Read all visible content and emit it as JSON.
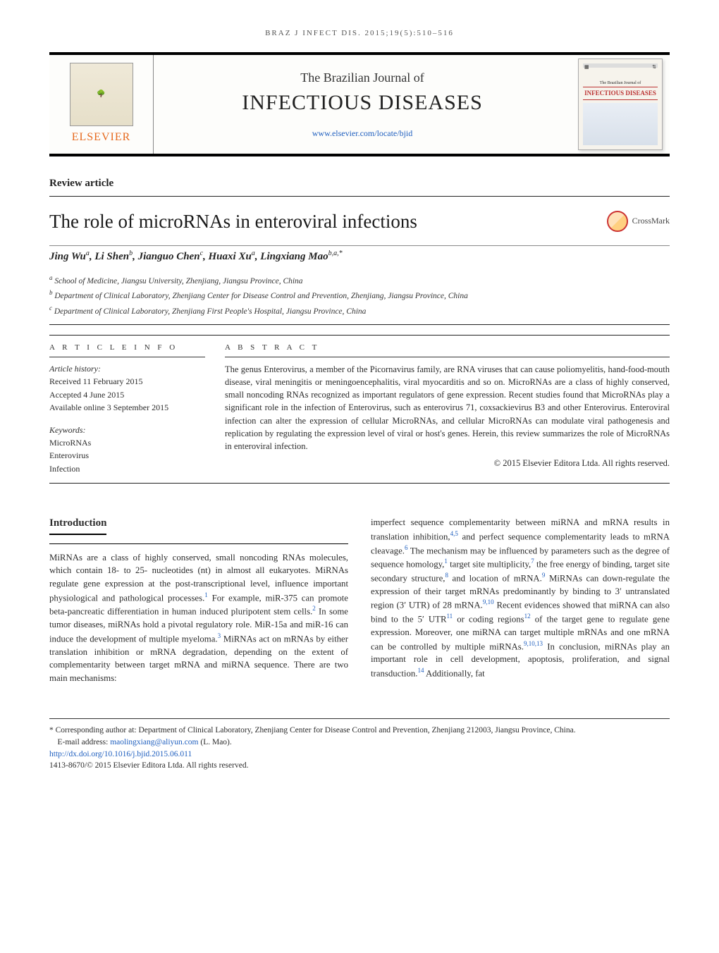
{
  "running_head": "BRAZ J INFECT DIS. 2015;19(5):510–516",
  "masthead": {
    "publisher": "ELSEVIER",
    "journal_pre": "The Brazilian Journal of",
    "journal_main": "INFECTIOUS DISEASES",
    "site_link": "www.elsevier.com/locate/bjid",
    "cover_title": "INFECTIOUS DISEASES",
    "cover_pre": "The Brazilian Journal of"
  },
  "article_type": "Review article",
  "title": "The role of microRNAs in enteroviral infections",
  "crossmark_label": "CrossMark",
  "authors_html": "Jing Wu<sup>a</sup>, Li Shen<sup>b</sup>, Jianguo Chen<sup>c</sup>, Huaxi Xu<sup>a</sup>, Lingxiang Mao<sup>b,a,*</sup>",
  "affiliations": {
    "a": "School of Medicine, Jiangsu University, Zhenjiang, Jiangsu Province, China",
    "b": "Department of Clinical Laboratory, Zhenjiang Center for Disease Control and Prevention, Zhenjiang, Jiangsu Province, China",
    "c": "Department of Clinical Laboratory, Zhenjiang First People's Hospital, Jiangsu Province, China"
  },
  "info": {
    "header": "A R T I C L E   I N F O",
    "history_label": "Article history:",
    "received": "Received 11 February 2015",
    "accepted": "Accepted 4 June 2015",
    "online": "Available online 3 September 2015",
    "keywords_label": "Keywords:",
    "keywords": [
      "MicroRNAs",
      "Enterovirus",
      "Infection"
    ]
  },
  "abstract": {
    "header": "A B S T R A C T",
    "text": "The genus Enterovirus, a member of the Picornavirus family, are RNA viruses that can cause poliomyelitis, hand-food-mouth disease, viral meningitis or meningoencephalitis, viral myocarditis and so on. MicroRNAs are a class of highly conserved, small noncoding RNAs recognized as important regulators of gene expression. Recent studies found that MicroRNAs play a significant role in the infection of Enterovirus, such as enterovirus 71, coxsackievirus B3 and other Enterovirus. Enteroviral infection can alter the expression of cellular MicroRNAs, and cellular MicroRNAs can modulate viral pathogenesis and replication by regulating the expression level of viral or host's genes. Herein, this review summarizes the role of MicroRNAs in enteroviral infection.",
    "copyright": "© 2015 Elsevier Editora Ltda. All rights reserved."
  },
  "intro_heading": "Introduction",
  "col_left": "MiRNAs are a class of highly conserved, small noncoding RNAs molecules, which contain 18- to 25- nucleotides (nt) in almost all eukaryotes. MiRNAs regulate gene expression at the post-transcriptional level, influence important physiological and pathological processes.<sup class='ref'>1</sup> For example, miR-375 can promote beta-pancreatic differentiation in human induced pluripotent stem cells.<sup class='ref'>2</sup> In some tumor diseases, miRNAs hold a pivotal regulatory role. MiR-15a and miR-16 can induce the development of multiple myeloma.<sup class='ref'>3</sup> MiRNAs act on mRNAs by either translation inhibition or mRNA degradation, depending on the extent of complementarity between target mRNA and miRNA sequence. There are two main mechanisms:",
  "col_right": "imperfect sequence complementarity between miRNA and mRNA results in translation inhibition,<sup class='ref'>4,5</sup> and perfect sequence complementarity leads to mRNA cleavage.<sup class='ref'>6</sup> The mechanism may be influenced by parameters such as the degree of sequence homology,<sup class='ref'>1</sup> target site multiplicity,<sup class='ref'>7</sup> the free energy of binding, target site secondary structure,<sup class='ref'>8</sup> and location of mRNA.<sup class='ref'>9</sup> MiRNAs can down-regulate the expression of their target mRNAs predominantly by binding to 3′ untranslated region (3′ UTR) of 28 mRNA.<sup class='ref'>9,10</sup> Recent evidences showed that miRNA can also bind to the 5′ UTR<sup class='ref'>11</sup> or coding regions<sup class='ref'>12</sup> of the target gene to regulate gene expression. Moreover, one miRNA can target multiple mRNAs and one mRNA can be controlled by multiple miRNAs.<sup class='ref'>9,10,13</sup> In conclusion, miRNAs play an important role in cell development, apoptosis, proliferation, and signal transduction.<sup class='ref'>14</sup> Additionally, fat",
  "footer": {
    "corr": "* Corresponding author at: Department of Clinical Laboratory, Zhenjiang Center for Disease Control and Prevention, Zhenjiang 212003, Jiangsu Province, China.",
    "email_label": "E-mail address: ",
    "email": "maolingxiang@aliyun.com",
    "email_who": " (L. Mao).",
    "doi": "http://dx.doi.org/10.1016/j.bjid.2015.06.011",
    "issn_line": "1413-8670/© 2015 Elsevier Editora Ltda. All rights reserved."
  },
  "colors": {
    "link": "#1f5fbf",
    "orange": "#e66a1f",
    "rule": "#222222",
    "text": "#2b2b2b"
  },
  "typography": {
    "body_pt": 12.8,
    "title_pt": 27,
    "authors_pt": 15,
    "affil_pt": 11.5,
    "abstract_pt": 12.5,
    "running_head_pt": 11,
    "journal_big_pt": 30
  }
}
